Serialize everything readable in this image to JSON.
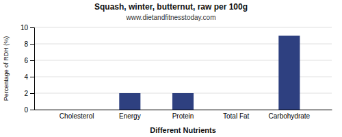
{
  "chart_data": {
    "type": "bar",
    "title": "Squash, winter, butternut, raw per 100g",
    "subtitle": "www.dietandfitnesstoday.com",
    "categories": [
      "Cholesterol",
      "Energy",
      "Protein",
      "Total Fat",
      "Carbohydrate"
    ],
    "values": [
      0,
      2,
      2,
      0,
      9
    ],
    "color": "#2e4080",
    "xlabel": "Different Nutrients",
    "ylabel": "Percentage of RDH (%)",
    "ylim": [
      0,
      10
    ],
    "yticks": [
      0,
      2,
      4,
      6,
      8,
      10
    ],
    "grid": true
  }
}
